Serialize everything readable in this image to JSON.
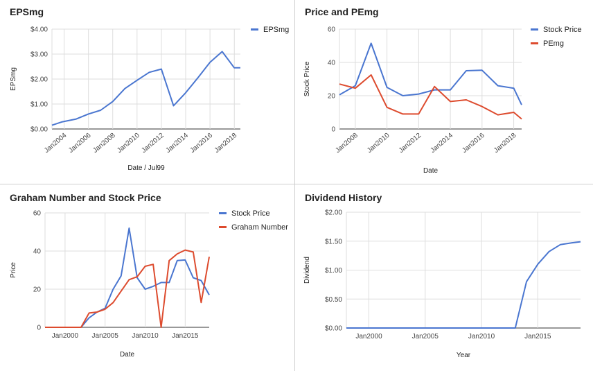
{
  "chart_data": [
    {
      "type": "line",
      "title": "EPSmg",
      "xlabel": "Date / Jul99",
      "ylabel": "EPSmg",
      "x_ticks": [
        "Jan2004",
        "Jan2006",
        "Jan2008",
        "Jan2010",
        "Jan2012",
        "Jan2014",
        "Jan2016",
        "Jan2018"
      ],
      "y_ticks": [
        "$0.00",
        "$1.00",
        "$2.00",
        "$3.00",
        "$4.00"
      ],
      "xlim": [
        2003,
        2018.5
      ],
      "ylim": [
        0,
        4
      ],
      "legend_position": "right",
      "series": [
        {
          "name": "EPSmg",
          "color": "#4a76d0",
          "x": [
            2003,
            2003.8,
            2005,
            2006,
            2007,
            2008,
            2009,
            2010,
            2011,
            2012,
            2013,
            2014,
            2015,
            2016,
            2017,
            2018,
            2018.5
          ],
          "values": [
            0.15,
            0.28,
            0.4,
            0.6,
            0.75,
            1.1,
            1.62,
            1.95,
            2.27,
            2.4,
            0.93,
            1.45,
            2.05,
            2.67,
            3.1,
            2.45,
            2.45
          ]
        }
      ]
    },
    {
      "type": "line",
      "title": "Price and PEmg",
      "xlabel": "Date",
      "ylabel": "Stock Price",
      "x_ticks": [
        "Jan2008",
        "Jan2010",
        "Jan2012",
        "Jan2014",
        "Jan2016",
        "Jan2018"
      ],
      "y_ticks": [
        "0",
        "20",
        "40",
        "60"
      ],
      "xlim": [
        2007,
        2018.5
      ],
      "ylim": [
        0,
        60
      ],
      "legend_position": "right",
      "series": [
        {
          "name": "Stock Price",
          "color": "#4a76d0",
          "x": [
            2007,
            2008,
            2009,
            2010,
            2011,
            2012,
            2013,
            2014,
            2015,
            2016,
            2017,
            2018,
            2018.5
          ],
          "values": [
            20.5,
            26,
            51.5,
            25,
            20,
            21,
            23.5,
            23.5,
            35,
            35.3,
            26,
            24.5,
            14.5
          ]
        },
        {
          "name": "PEmg",
          "color": "#dd4b2e",
          "x": [
            2007,
            2008,
            2009,
            2010,
            2011,
            2012,
            2013,
            2014,
            2015,
            2016,
            2017,
            2018,
            2018.5
          ],
          "values": [
            27,
            24.5,
            32.5,
            13,
            9,
            9,
            25.5,
            16.5,
            17.5,
            13.5,
            8.5,
            10,
            6
          ]
        }
      ]
    },
    {
      "type": "line",
      "title": "Graham Number and Stock Price",
      "xlabel": "Date",
      "ylabel": "Price",
      "x_ticks": [
        "Jan2000",
        "Jan2005",
        "Jan2010",
        "Jan2015"
      ],
      "x_tick_values": [
        2000,
        2005,
        2010,
        2015
      ],
      "y_ticks": [
        "0",
        "20",
        "40",
        "60"
      ],
      "xlim": [
        1997.5,
        2018
      ],
      "ylim": [
        0,
        60
      ],
      "legend_position": "right",
      "series": [
        {
          "name": "Stock Price",
          "color": "#4a76d0",
          "x": [
            1997.5,
            2002,
            2003,
            2004,
            2005,
            2006,
            2007,
            2008,
            2009,
            2010,
            2011,
            2012,
            2013,
            2014,
            2015,
            2016,
            2017,
            2018
          ],
          "values": [
            0,
            0,
            5,
            8,
            10,
            20,
            27,
            52,
            26,
            20,
            21.5,
            23.5,
            23.5,
            35,
            35.3,
            26,
            24.5,
            17
          ]
        },
        {
          "name": "Graham Number",
          "color": "#dd4b2e",
          "x": [
            1997.5,
            2002,
            2003,
            2004,
            2005,
            2006,
            2007,
            2008,
            2009,
            2010,
            2011,
            2012,
            2013,
            2014,
            2015,
            2016,
            2017,
            2018
          ],
          "values": [
            0,
            0,
            7.5,
            8,
            9.5,
            13,
            19,
            25,
            26.5,
            32,
            33,
            0,
            35,
            38.5,
            40.5,
            39.5,
            13,
            37
          ]
        }
      ]
    },
    {
      "type": "line",
      "title": "Dividend History",
      "xlabel": "Year",
      "ylabel": "Dividend",
      "x_ticks": [
        "Jan2000",
        "Jan2005",
        "Jan2010",
        "Jan2015"
      ],
      "x_tick_values": [
        2000,
        2005,
        2010,
        2015
      ],
      "y_ticks": [
        "$0.00",
        "$0.50",
        "$1.00",
        "$1.50",
        "$2.00"
      ],
      "xlim": [
        1998,
        2018.8
      ],
      "ylim": [
        0,
        2
      ],
      "series": [
        {
          "name": "Dividend",
          "color": "#4a76d0",
          "x": [
            1998,
            2013,
            2014,
            2015,
            2016,
            2017,
            2018,
            2018.8
          ],
          "values": [
            0,
            0,
            0.8,
            1.1,
            1.32,
            1.44,
            1.47,
            1.49
          ]
        }
      ]
    }
  ]
}
